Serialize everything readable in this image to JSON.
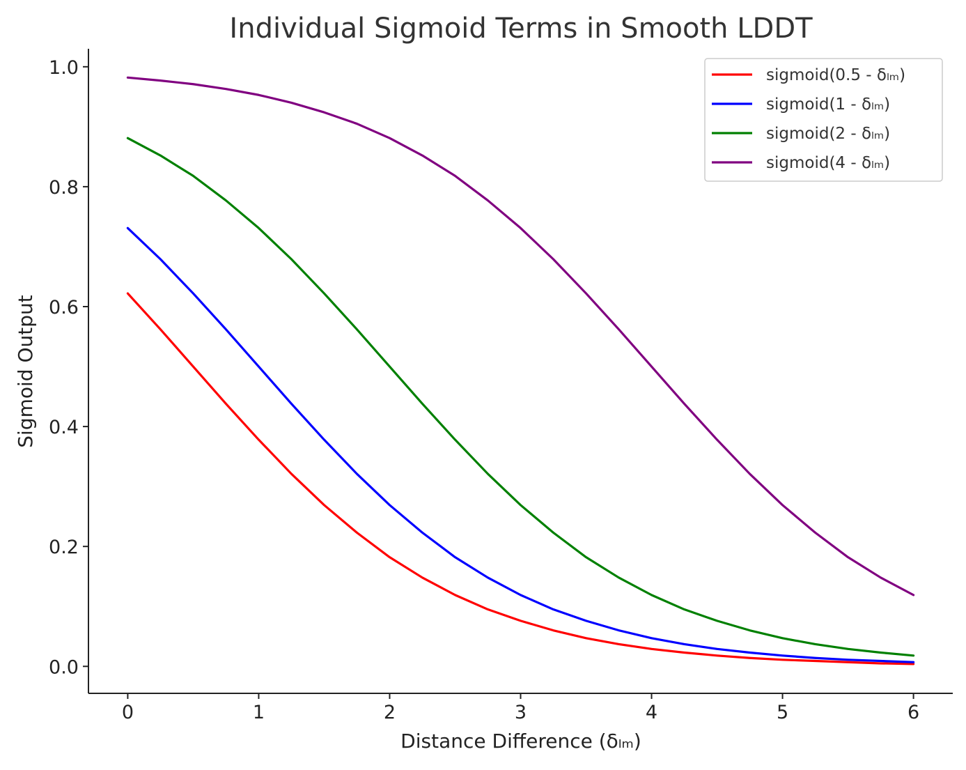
{
  "chart_data": {
    "type": "line",
    "title": "Individual Sigmoid Terms in Smooth LDDT",
    "xlabel": "Distance Difference (δₗₘ)",
    "ylabel": "Sigmoid Output",
    "xlim": [
      -0.3,
      6.3
    ],
    "ylim": [
      -0.045,
      1.03
    ],
    "x_ticks": [
      0,
      1,
      2,
      3,
      4,
      5,
      6
    ],
    "x_tick_labels": [
      "0",
      "1",
      "2",
      "3",
      "4",
      "5",
      "6"
    ],
    "y_ticks": [
      0.0,
      0.2,
      0.4,
      0.6,
      0.8,
      1.0
    ],
    "y_tick_labels": [
      "0.0",
      "0.2",
      "0.4",
      "0.6",
      "0.8",
      "1.0"
    ],
    "grid": false,
    "legend_position": "top-right",
    "x": [
      0,
      0.25,
      0.5,
      0.75,
      1,
      1.25,
      1.5,
      1.75,
      2,
      2.25,
      2.5,
      2.75,
      3,
      3.25,
      3.5,
      3.75,
      4,
      4.25,
      4.5,
      4.75,
      5,
      5.25,
      5.5,
      5.75,
      6
    ],
    "series": [
      {
        "name": "sigmoid(0.5 - δₗₘ)",
        "color": "#ff0000",
        "values": [
          0.622,
          0.562,
          0.5,
          0.438,
          0.378,
          0.321,
          0.269,
          0.223,
          0.182,
          0.148,
          0.119,
          0.095,
          0.076,
          0.06,
          0.047,
          0.037,
          0.029,
          0.023,
          0.018,
          0.014,
          0.011,
          0.009,
          0.007,
          0.005,
          0.004
        ]
      },
      {
        "name": "sigmoid(1 - δₗₘ)",
        "color": "#0000ff",
        "values": [
          0.731,
          0.679,
          0.622,
          0.562,
          0.5,
          0.438,
          0.378,
          0.321,
          0.269,
          0.223,
          0.182,
          0.148,
          0.119,
          0.095,
          0.076,
          0.06,
          0.047,
          0.037,
          0.029,
          0.023,
          0.018,
          0.014,
          0.011,
          0.009,
          0.007
        ]
      },
      {
        "name": "sigmoid(2 - δₗₘ)",
        "color": "#008000",
        "values": [
          0.881,
          0.852,
          0.818,
          0.777,
          0.731,
          0.679,
          0.622,
          0.562,
          0.5,
          0.438,
          0.378,
          0.321,
          0.269,
          0.223,
          0.182,
          0.148,
          0.119,
          0.095,
          0.076,
          0.06,
          0.047,
          0.037,
          0.029,
          0.023,
          0.018
        ]
      },
      {
        "name": "sigmoid(4 - δₗₘ)",
        "color": "#800080",
        "values": [
          0.982,
          0.977,
          0.971,
          0.963,
          0.953,
          0.94,
          0.924,
          0.905,
          0.881,
          0.852,
          0.818,
          0.777,
          0.731,
          0.679,
          0.622,
          0.562,
          0.5,
          0.438,
          0.378,
          0.321,
          0.269,
          0.223,
          0.182,
          0.148,
          0.119
        ]
      }
    ]
  }
}
